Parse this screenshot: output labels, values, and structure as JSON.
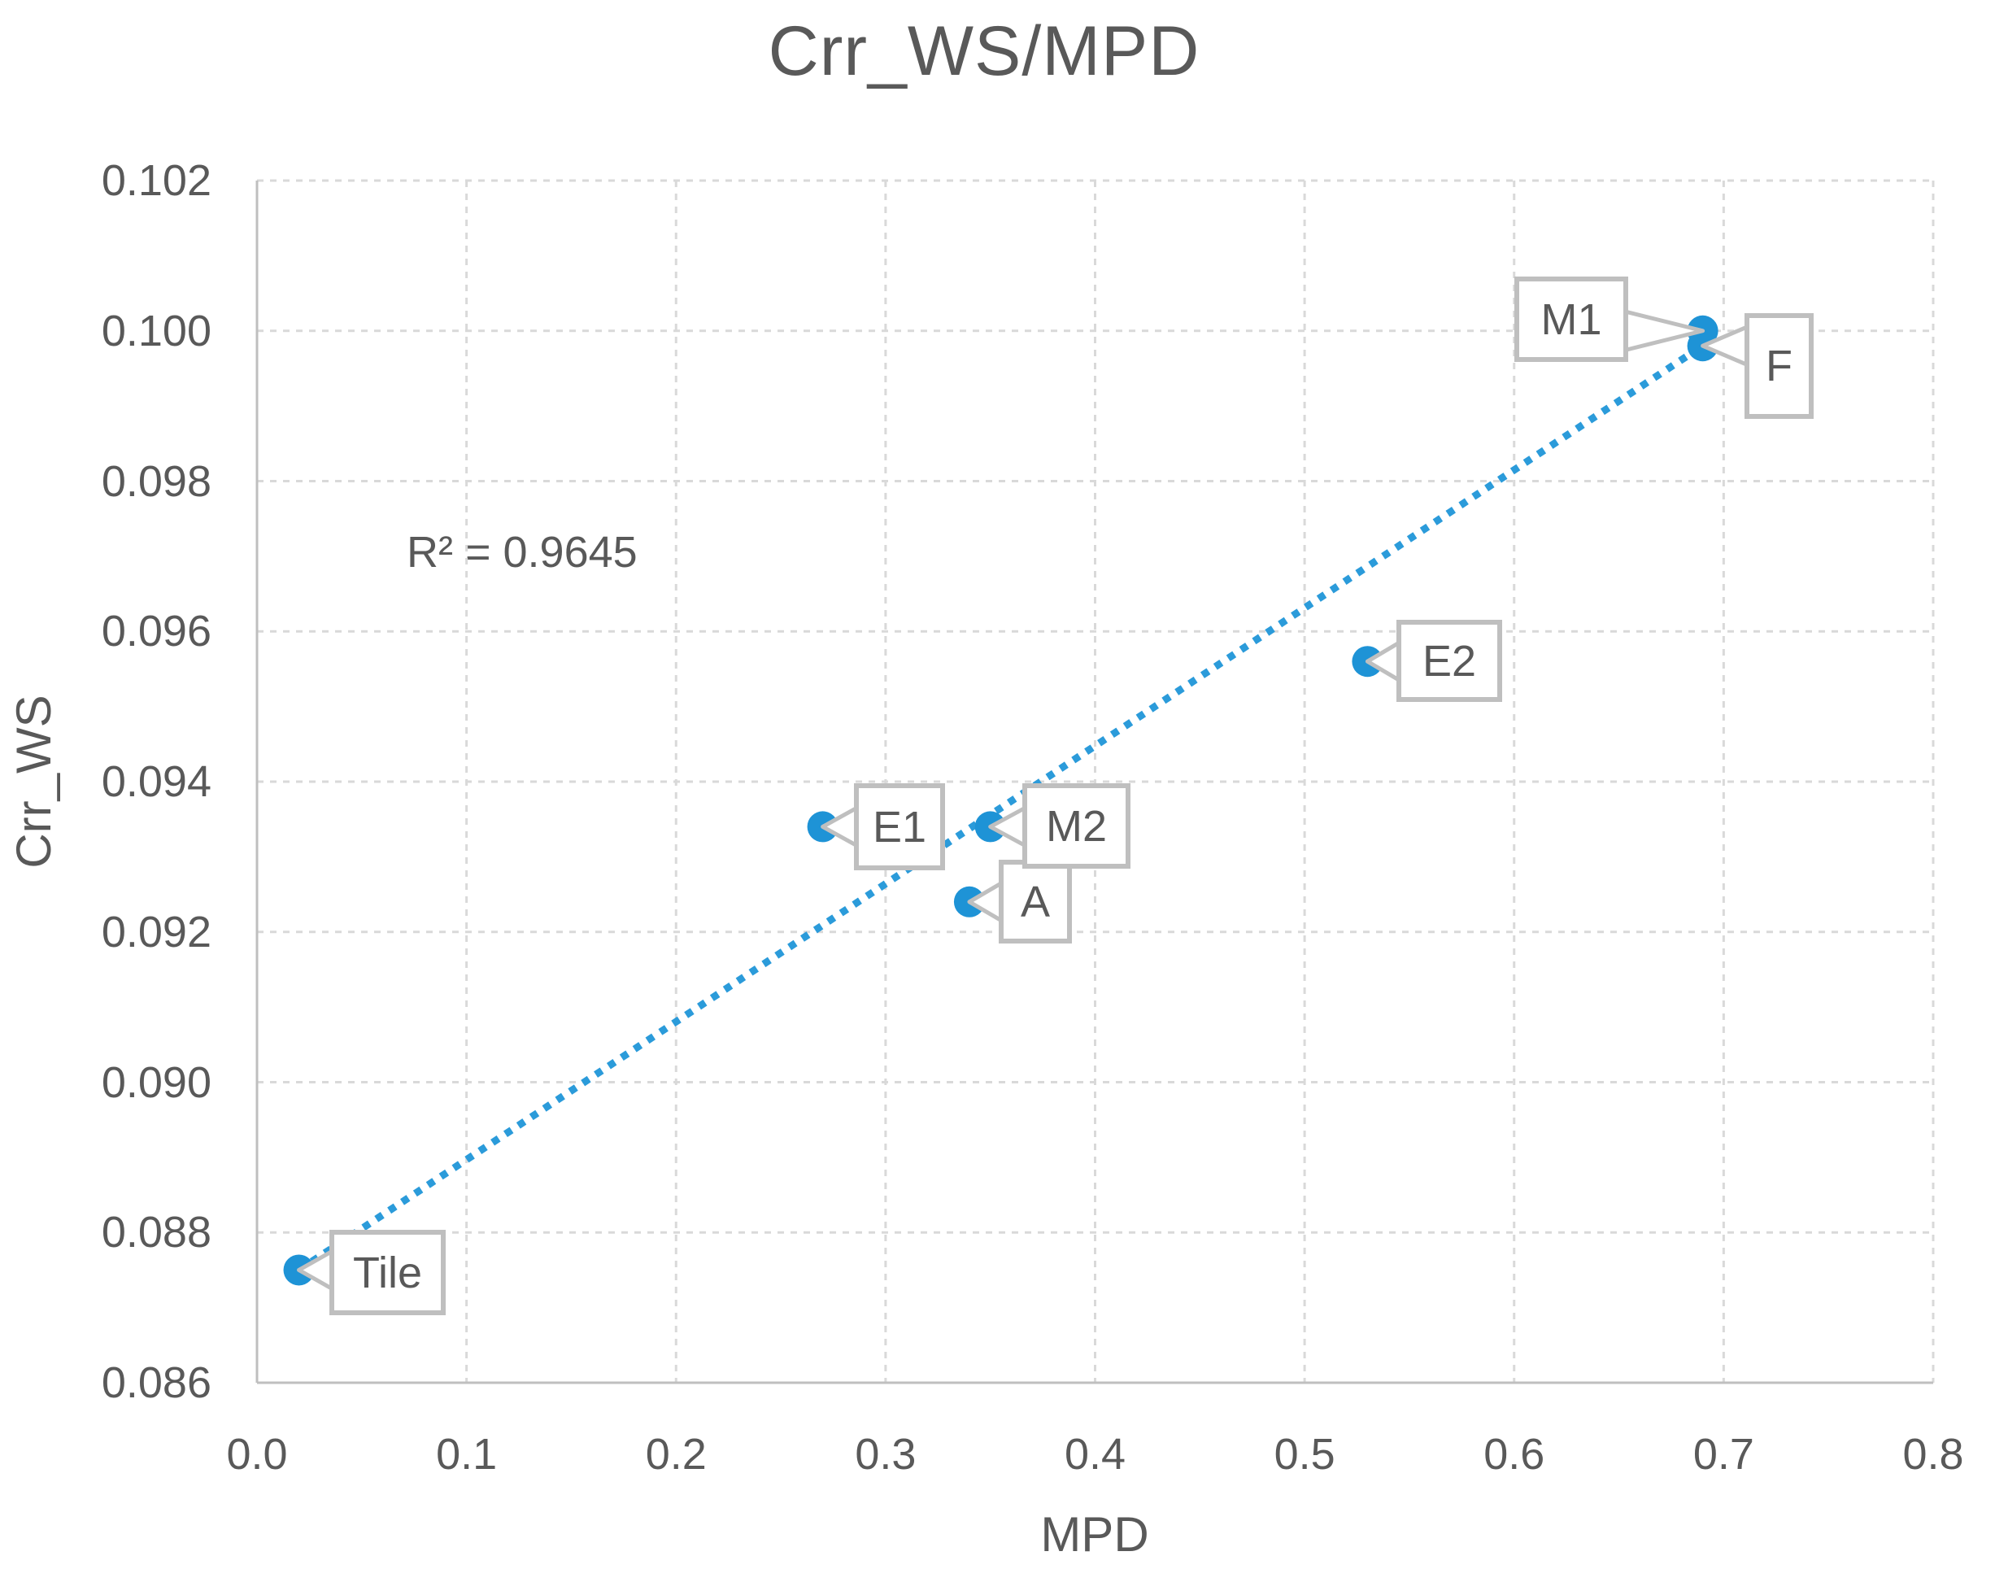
{
  "title": "Crr_WS/MPD",
  "annotation": {
    "r_squared_label": "R² = 0.9645"
  },
  "chart_data": {
    "type": "scatter",
    "title": "Crr_WS/MPD",
    "xlabel": "MPD",
    "ylabel": "Crr_WS",
    "xlim": [
      0.0,
      0.8
    ],
    "ylim": [
      0.086,
      0.102
    ],
    "x_ticks": [
      "0.0",
      "0.1",
      "0.2",
      "0.3",
      "0.4",
      "0.5",
      "0.6",
      "0.7",
      "0.8"
    ],
    "y_ticks": [
      "0.086",
      "0.088",
      "0.090",
      "0.092",
      "0.094",
      "0.096",
      "0.098",
      "0.100",
      "0.102"
    ],
    "grid": true,
    "legend": "none",
    "points": [
      {
        "label": "Tile",
        "x": 0.02,
        "y": 0.0875
      },
      {
        "label": "E1",
        "x": 0.27,
        "y": 0.0934
      },
      {
        "label": "A",
        "x": 0.34,
        "y": 0.0924
      },
      {
        "label": "M2",
        "x": 0.35,
        "y": 0.0934
      },
      {
        "label": "E2",
        "x": 0.53,
        "y": 0.0956
      },
      {
        "label": "M1",
        "x": 0.69,
        "y": 0.1
      },
      {
        "label": "F",
        "x": 0.69,
        "y": 0.0998
      }
    ],
    "trendline": {
      "type": "linear",
      "style": "dotted",
      "r_squared": 0.9645,
      "x_start": 0.02,
      "y_start": 0.0875,
      "x_end": 0.69,
      "y_end": 0.0998
    },
    "colors": {
      "point": "#1e93d6",
      "trendline": "#2b9bda",
      "gridline": "#d9d9d9",
      "axis_line": "#bfbfbf",
      "text": "#595959",
      "callout_border": "#bfbfbf",
      "callout_fill": "#ffffff"
    }
  }
}
